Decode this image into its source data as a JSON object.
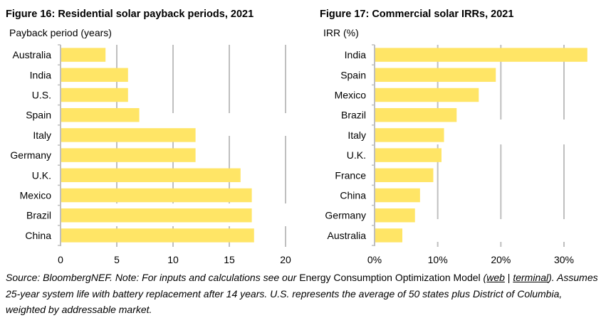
{
  "colors": {
    "bar": "#FFE566",
    "gridline": "#BFBFBF",
    "axis": "#BFBFBF",
    "text": "#000000"
  },
  "chart_data": [
    {
      "type": "bar",
      "orientation": "horizontal",
      "title": "Figure 16: Residential solar payback periods, 2021",
      "xlabel": "",
      "ylabel": "Payback period (years)",
      "categories": [
        "Australia",
        "India",
        "U.S.",
        "Spain",
        "Italy",
        "Germany",
        "U.K.",
        "Mexico",
        "Brazil",
        "China"
      ],
      "values": [
        4.0,
        6.0,
        6.0,
        7.0,
        12.0,
        12.0,
        16.0,
        17.0,
        17.0,
        17.2
      ],
      "xlim": [
        0,
        20
      ],
      "xticks": [
        0,
        5,
        10,
        15,
        20
      ],
      "xtick_labels": [
        "0",
        "5",
        "10",
        "15",
        "20"
      ],
      "grid": true,
      "legend": "none"
    },
    {
      "type": "bar",
      "orientation": "horizontal",
      "title": "Figure 17: Commercial solar IRRs, 2021",
      "xlabel": "",
      "ylabel": "IRR (%)",
      "categories": [
        "India",
        "Spain",
        "Mexico",
        "Brazil",
        "Italy",
        "U.K.",
        "France",
        "China",
        "Germany",
        "Australia"
      ],
      "values": [
        33.7,
        19.2,
        16.5,
        13.0,
        11.0,
        10.6,
        9.3,
        7.2,
        6.4,
        4.4
      ],
      "xlim": [
        0,
        30
      ],
      "xticks": [
        0,
        10,
        20,
        30
      ],
      "xtick_labels": [
        "0%",
        "10%",
        "20%",
        "30%"
      ],
      "grid": true,
      "legend": "none"
    }
  ],
  "footnote": {
    "source": "Source: BloombergNEF. Note: For inputs and calculations see our ",
    "model_name": "Energy Consumption Optimization Model",
    "paren_open": " (",
    "link_web": "web",
    "separator": " | ",
    "link_terminal": "terminal",
    "paren_close": ").",
    "line2": " Assumes 25-year system life with battery replacement after 14 years. U.S. represents the average of 50 states plus District of Columbia, weighted by addressable market."
  }
}
